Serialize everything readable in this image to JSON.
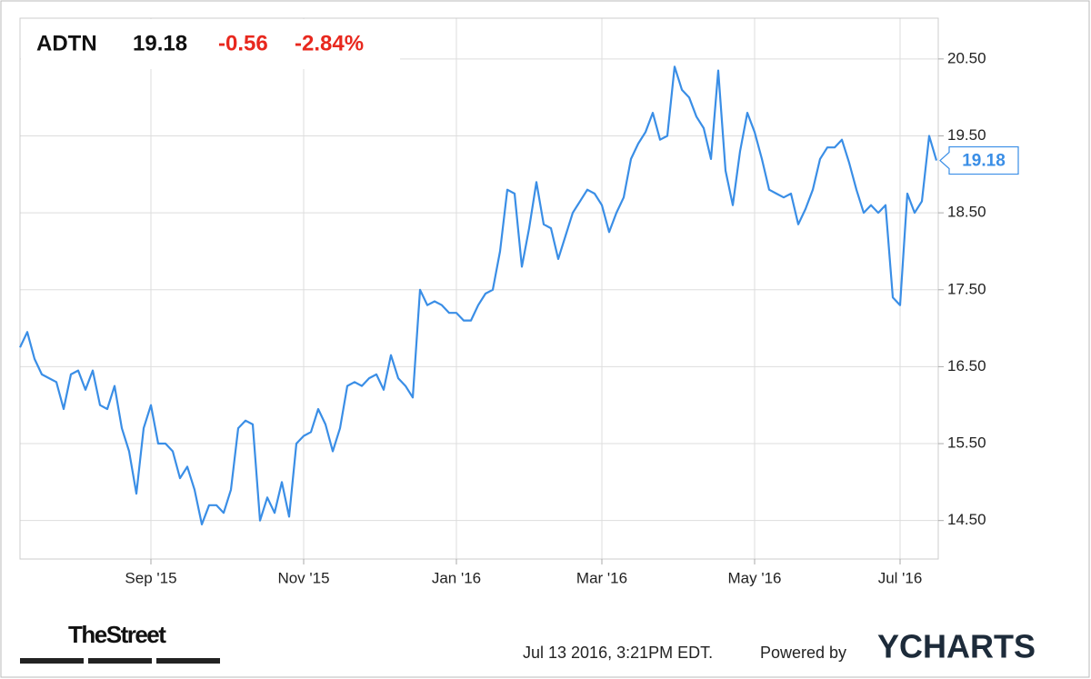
{
  "chart_data": {
    "type": "line",
    "title": "ADTN",
    "change": -0.56,
    "change_pct": {
      "value": -2.84,
      "label": "-2.84%"
    },
    "categories": [
      null,
      null,
      null,
      null,
      null,
      null,
      null,
      null,
      null,
      null,
      null,
      null,
      null,
      null,
      null,
      null,
      null,
      null,
      "Sep '15",
      null,
      null,
      null,
      null,
      null,
      null,
      null,
      null,
      null,
      null,
      null,
      null,
      null,
      null,
      null,
      null,
      null,
      null,
      null,
      null,
      "Nov '15",
      null,
      null,
      null,
      null,
      null,
      null,
      null,
      null,
      null,
      null,
      null,
      null,
      null,
      null,
      null,
      null,
      null,
      null,
      null,
      null,
      "Jan '16",
      null,
      null,
      null,
      null,
      null,
      null,
      null,
      null,
      null,
      null,
      null,
      null,
      null,
      null,
      null,
      null,
      null,
      null,
      null,
      "Mar '16",
      null,
      null,
      null,
      null,
      null,
      null,
      null,
      null,
      null,
      null,
      null,
      null,
      null,
      null,
      null,
      null,
      null,
      null,
      null,
      null,
      "May '16",
      null,
      null,
      null,
      null,
      null,
      null,
      null,
      null,
      null,
      null,
      null,
      null,
      null,
      null,
      null,
      null,
      null,
      null,
      null,
      "Jul '16",
      null,
      null,
      null,
      null,
      null
    ],
    "series": [
      {
        "name": "ADTN",
        "color": "#3a8ee6",
        "values": [
          16.75,
          16.95,
          16.6,
          16.4,
          16.35,
          16.3,
          15.95,
          16.4,
          16.45,
          16.2,
          16.45,
          16.0,
          15.95,
          16.25,
          15.7,
          15.4,
          14.85,
          15.7,
          16.0,
          15.5,
          15.5,
          15.4,
          15.05,
          15.2,
          14.9,
          14.45,
          14.7,
          14.7,
          14.6,
          14.9,
          15.7,
          15.8,
          15.75,
          14.5,
          14.8,
          14.6,
          15.0,
          14.55,
          15.5,
          15.6,
          15.65,
          15.95,
          15.75,
          15.4,
          15.7,
          16.25,
          16.3,
          16.25,
          16.35,
          16.4,
          16.2,
          16.65,
          16.35,
          16.25,
          16.1,
          17.5,
          17.3,
          17.35,
          17.3,
          17.2,
          17.2,
          17.1,
          17.1,
          17.3,
          17.45,
          17.5,
          18.0,
          18.8,
          18.75,
          17.8,
          18.3,
          18.9,
          18.35,
          18.3,
          17.9,
          18.2,
          18.5,
          18.65,
          18.8,
          18.75,
          18.6,
          18.25,
          18.5,
          18.7,
          19.2,
          19.4,
          19.55,
          19.8,
          19.45,
          19.5,
          20.4,
          20.1,
          20.0,
          19.75,
          19.6,
          19.2,
          20.35,
          19.05,
          18.6,
          19.3,
          19.8,
          19.55,
          19.2,
          18.8,
          18.75,
          18.7,
          18.75,
          18.35,
          18.55,
          18.8,
          19.2,
          19.35,
          19.35,
          19.45,
          19.15,
          18.8,
          18.5,
          18.6,
          18.5,
          18.6,
          17.4,
          17.3,
          18.75,
          18.5,
          18.65,
          19.5,
          19.18
        ]
      }
    ],
    "ylim": [
      14.0,
      21.03
    ],
    "yticks": [
      {
        "value": 14.5,
        "label": "14.50"
      },
      {
        "value": 15.5,
        "label": "15.50"
      },
      {
        "value": 16.5,
        "label": "16.50"
      },
      {
        "value": 17.5,
        "label": "17.50"
      },
      {
        "value": 18.5,
        "label": "18.50"
      },
      {
        "value": 19.5,
        "label": "19.50"
      },
      {
        "value": 20.5,
        "label": "20.50"
      }
    ],
    "grid": true
  },
  "footer": {
    "publisher": "TheStreet",
    "timestamp": "Jul 13 2016, 3:21PM EDT.",
    "powered_by": "Powered by",
    "brand": "YCHARTS"
  }
}
